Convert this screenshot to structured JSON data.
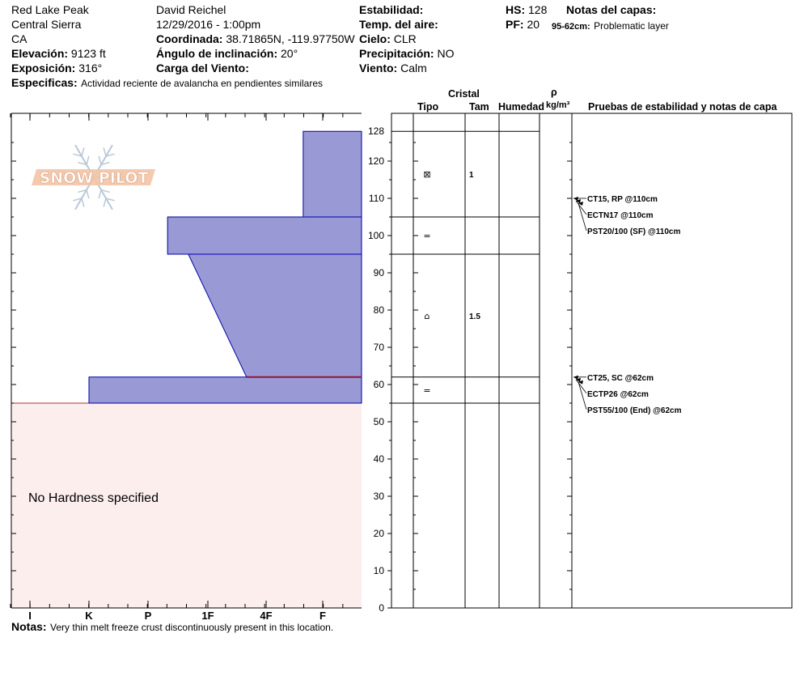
{
  "header": {
    "location": "Red Lake Peak",
    "range": "Central Sierra",
    "state": "CA",
    "elevation_label": "Elevación:",
    "elevation_value": "9123 ft",
    "exposure_label": "Exposición:",
    "exposure_value": "316°",
    "specifics_label": "Especificas:",
    "specifics_value": "Actividad reciente de avalancha en pendientes similares",
    "observer": "David Reichel",
    "datetime": "12/29/2016 - 1:00pm",
    "coord_label": "Coordinada:",
    "coord_value": "38.71865N, -119.97750W",
    "slope_label": "Ángulo de inclinación:",
    "slope_value": "20°",
    "wind_load_label": "Carga del Viento:",
    "stability_label": "Estabilidad:",
    "air_temp_label": "Temp. del aire:",
    "sky_label": "Cielo:",
    "sky_value": "CLR",
    "precip_label": "Precipitación:",
    "precip_value": "NO",
    "wind_label": "Viento:",
    "wind_value": "Calm",
    "hs_label": "HS:",
    "hs_value": "128",
    "pf_label": "PF:",
    "pf_value": "20",
    "layer_notes_label": "Notas del capas:",
    "layer_note_range": "95-62cm:",
    "layer_note_text": "Problematic layer"
  },
  "notes": {
    "label": "Notas:",
    "text": "Very thin melt freeze crust discontinuously present in this location."
  },
  "logo_text": "SNOW PILOT",
  "hardness_chart": {
    "no_hardness_text": "No Hardness specified",
    "x_labels": [
      "I",
      "K",
      "P",
      "1F",
      "4F",
      "F"
    ],
    "colors": {
      "layer_fill": "#9999d6",
      "layer_edge": "#0000aa",
      "crust_line": "#8b1a3a",
      "no_hardness_fill": "#fdeeee",
      "no_hardness_edge": "#b03030"
    }
  },
  "table_headers": {
    "cristal": "Cristal",
    "tipo": "Tipo",
    "tam": "Tam",
    "humedad": "Humedad",
    "rho": "ρ",
    "density_unit": "kg/m³",
    "tests": "Pruebas de estabilidad y notas de capa"
  },
  "chart_data": {
    "type": "snow_profile",
    "depth_axis": {
      "min": 0,
      "max": 128,
      "ticks": [
        0,
        10,
        20,
        30,
        40,
        50,
        60,
        70,
        80,
        90,
        100,
        110,
        120
      ],
      "top_label": "128"
    },
    "hardness_scale": [
      "I",
      "K",
      "P",
      "1F",
      "4F",
      "F"
    ],
    "hardness_layers": [
      {
        "top": 128,
        "bottom": 105,
        "hardness_top": "F-",
        "hardness_bottom": "F-"
      },
      {
        "top": 105,
        "bottom": 95,
        "hardness_top": "P+",
        "hardness_bottom": "P+"
      },
      {
        "top": 95,
        "bottom": 62,
        "hardness_top": "1F-",
        "hardness_bottom": "4F-"
      },
      {
        "top": 62,
        "bottom": 55,
        "hardness_top": "K",
        "hardness_bottom": "K"
      }
    ],
    "crust_at": 62,
    "no_hardness_below": 55,
    "grain_rows": [
      {
        "top": 128,
        "bottom": 105,
        "tipo": "⊠",
        "tam": "1"
      },
      {
        "top": 105,
        "bottom": 95,
        "tipo": "=",
        "tam": ""
      },
      {
        "top": 95,
        "bottom": 62,
        "tipo": "⌂",
        "tam": "1.5"
      },
      {
        "top": 62,
        "bottom": 55,
        "tipo": "=",
        "tam": ""
      }
    ],
    "tests": [
      {
        "depth": 110,
        "labels": [
          "CT15, RP @110cm",
          "ECTN17 @110cm",
          "PST20/100 (SF) @110cm"
        ]
      },
      {
        "depth": 62,
        "labels": [
          "CT25, SC @62cm",
          "ECTP26 @62cm",
          "PST55/100 (End) @62cm"
        ]
      }
    ]
  }
}
